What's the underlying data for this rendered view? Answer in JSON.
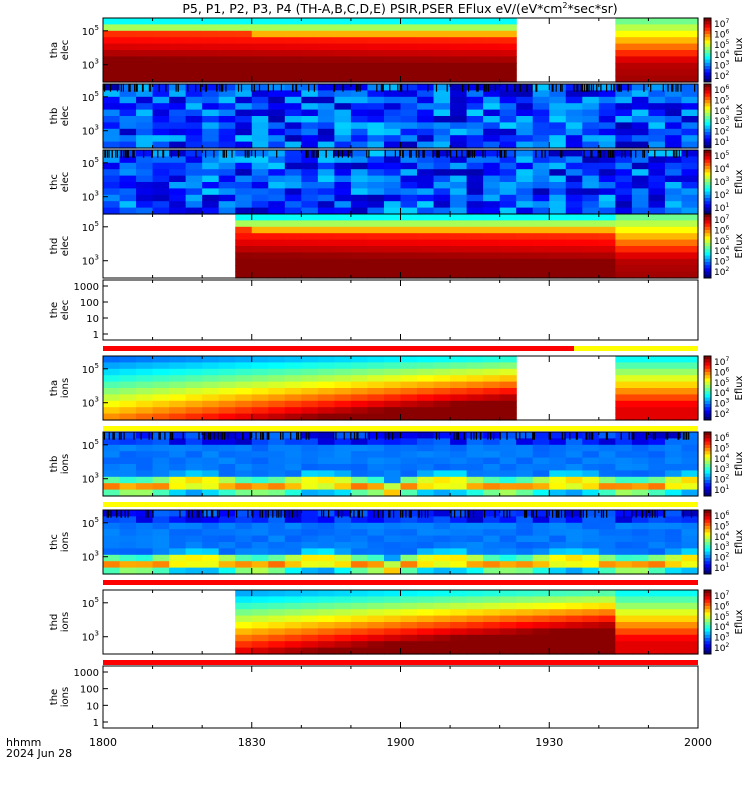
{
  "title": {
    "prefix": "P5, P1, P2, P3, P4 (TH-A,B,C,D,E) PSIR,PSER EFlux eV/(eV*cm",
    "sup": "2",
    "suffix": "*sec*sr)"
  },
  "xaxis": {
    "label_line1": "hhmm",
    "label_line2": "2024 Jun 28",
    "ticks": [
      "1800",
      "1830",
      "1900",
      "1930",
      "2000"
    ],
    "range_minutes": [
      0,
      120
    ]
  },
  "colorbar_label": "Eflux",
  "colors": {
    "data_gap": "#ffffff",
    "quality_flag_bad": "#ff0000",
    "quality_flag_ok": "#ffff00"
  },
  "chart_data": [
    {
      "type": "heatmap",
      "probe": "tha",
      "species": "elec",
      "ylabel_1": "tha",
      "ylabel_2": "elec",
      "yscale": "log",
      "yticks": [
        "10^5",
        "10^3"
      ],
      "cbar_ticks": [
        "10^7",
        "10^6",
        "10^5",
        "10^4",
        "10^3",
        "10^2"
      ],
      "profile": "hot",
      "gap_minutes": [
        [
          85,
          103
        ]
      ],
      "flag_bar": false
    },
    {
      "type": "heatmap",
      "probe": "thb",
      "species": "elec",
      "ylabel_1": "thb",
      "ylabel_2": "elec",
      "yscale": "log",
      "yticks": [
        "10^5",
        "10^3"
      ],
      "cbar_ticks": [
        "10^6",
        "10^5",
        "10^4",
        "10^3",
        "10^2",
        "10^1"
      ],
      "profile": "cold",
      "gap_minutes": [],
      "flag_bar": false
    },
    {
      "type": "heatmap",
      "probe": "thc",
      "species": "elec",
      "ylabel_1": "thc",
      "ylabel_2": "elec",
      "yscale": "log",
      "yticks": [
        "10^5",
        "10^3"
      ],
      "cbar_ticks": [
        "10^5",
        "10^4",
        "10^3",
        "10^2",
        "10^1"
      ],
      "profile": "cold",
      "gap_minutes": [],
      "flag_bar": false
    },
    {
      "type": "heatmap",
      "probe": "thd",
      "species": "elec",
      "ylabel_1": "thd",
      "ylabel_2": "elec",
      "yscale": "log",
      "yticks": [
        "10^5",
        "10^3"
      ],
      "cbar_ticks": [
        "10^7",
        "10^6",
        "10^5",
        "10^4",
        "10^3",
        "10^2"
      ],
      "profile": "hot",
      "gap_minutes": [
        [
          0,
          28
        ]
      ],
      "flag_bar": false
    },
    {
      "type": "heatmap",
      "probe": "the",
      "species": "elec",
      "ylabel_1": "the",
      "ylabel_2": "elec",
      "yscale": "log",
      "yticks": [
        "1000",
        "100",
        "10",
        "1"
      ],
      "cbar_ticks": [],
      "profile": "empty",
      "gap_minutes": [],
      "flag_bar": true,
      "flag_red_until_minute": 95
    },
    {
      "type": "heatmap",
      "probe": "tha",
      "species": "ions",
      "ylabel_1": "tha",
      "ylabel_2": "ions",
      "yscale": "log",
      "yticks": [
        "10^5",
        "10^3"
      ],
      "cbar_ticks": [
        "10^7",
        "10^6",
        "10^5",
        "10^4",
        "10^3",
        "10^2"
      ],
      "profile": "ionhot",
      "gap_minutes": [
        [
          85,
          103
        ]
      ],
      "flag_bar": true,
      "flag_red_until_minute": 0
    },
    {
      "type": "heatmap",
      "probe": "thb",
      "species": "ions",
      "ylabel_1": "thb",
      "ylabel_2": "ions",
      "yscale": "log",
      "yticks": [
        "10^5",
        "10^3"
      ],
      "cbar_ticks": [
        "10^6",
        "10^5",
        "10^4",
        "10^3",
        "10^2",
        "10^1"
      ],
      "profile": "ionband",
      "gap_minutes": [],
      "flag_bar": true,
      "flag_red_until_minute": 0
    },
    {
      "type": "heatmap",
      "probe": "thc",
      "species": "ions",
      "ylabel_1": "thc",
      "ylabel_2": "ions",
      "yscale": "log",
      "yticks": [
        "10^5",
        "10^3"
      ],
      "cbar_ticks": [
        "10^6",
        "10^5",
        "10^4",
        "10^3",
        "10^2",
        "10^1"
      ],
      "profile": "ionband",
      "gap_minutes": [],
      "flag_bar": true,
      "flag_red_until_minute": 120
    },
    {
      "type": "heatmap",
      "probe": "thd",
      "species": "ions",
      "ylabel_1": "thd",
      "ylabel_2": "ions",
      "yscale": "log",
      "yticks": [
        "10^5",
        "10^3"
      ],
      "cbar_ticks": [
        "10^7",
        "10^6",
        "10^5",
        "10^4",
        "10^3",
        "10^2"
      ],
      "profile": "ionhot",
      "gap_minutes": [
        [
          0,
          28
        ]
      ],
      "flag_bar": true,
      "flag_red_until_minute": 120
    },
    {
      "type": "heatmap",
      "probe": "the",
      "species": "ions",
      "ylabel_1": "the",
      "ylabel_2": "ions",
      "yscale": "log",
      "yticks": [
        "1000",
        "100",
        "10",
        "1"
      ],
      "cbar_ticks": [],
      "profile": "empty",
      "gap_minutes": [],
      "flag_bar": false
    }
  ]
}
